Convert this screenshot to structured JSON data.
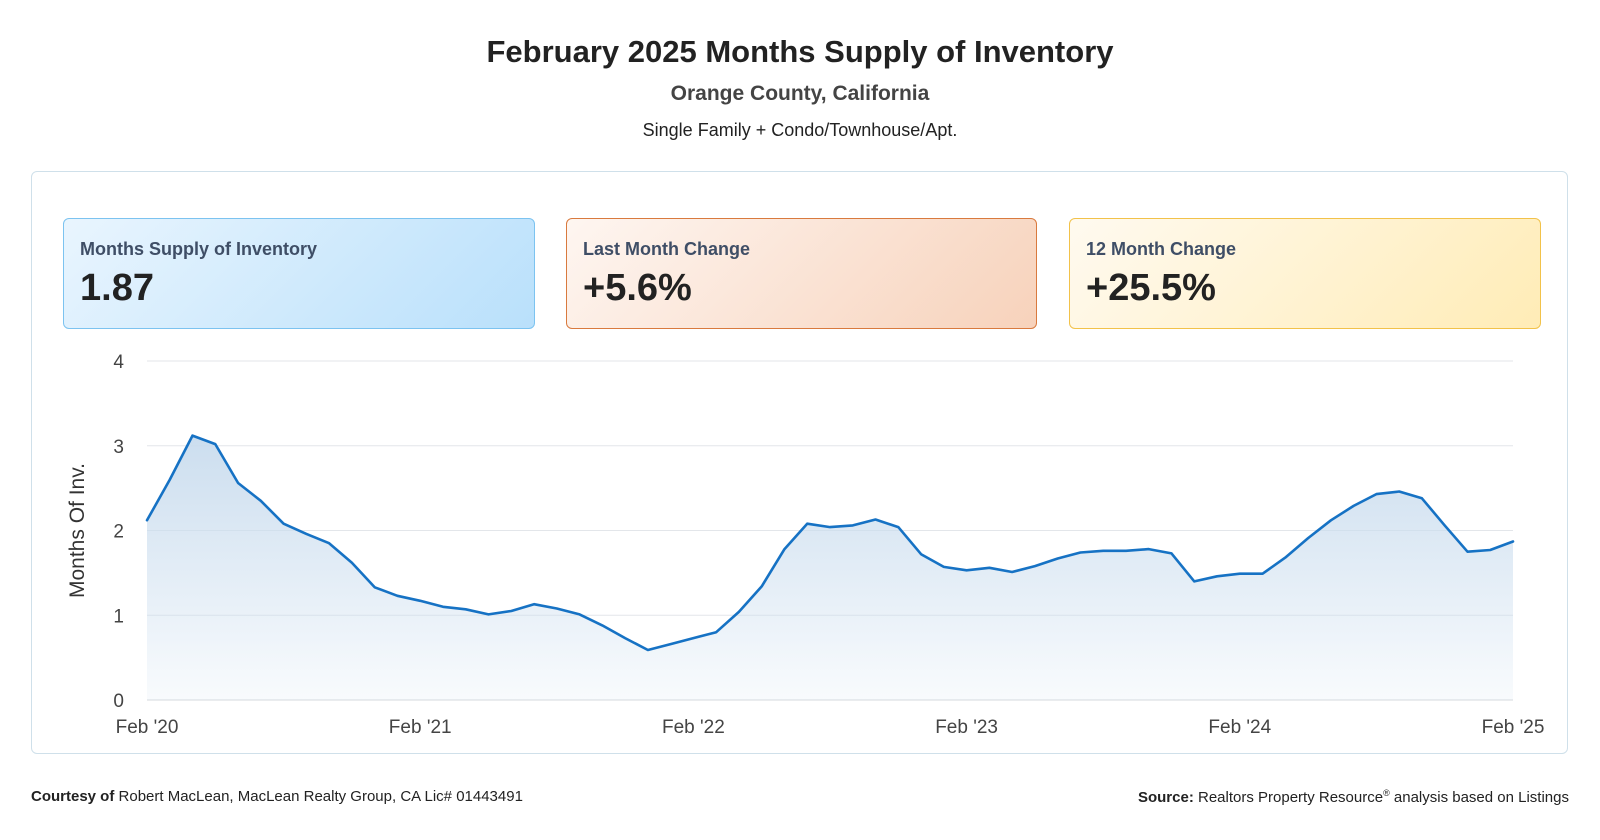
{
  "header": {
    "title": "February 2025 Months Supply of Inventory",
    "subtitle": "Orange County, California",
    "property_types": "Single Family + Condo/Townhouse/Apt."
  },
  "cards": [
    {
      "label": "Months Supply of Inventory",
      "value": "1.87",
      "border": "#7cc3f0"
    },
    {
      "label": "Last Month Change",
      "value": "+5.6%",
      "border": "#d97a3e"
    },
    {
      "label": "12 Month Change",
      "value": "+25.5%",
      "border": "#f2c24a"
    }
  ],
  "footer": {
    "courtesy_label": "Courtesy of",
    "courtesy_text": "Robert MacLean, MacLean Realty Group, CA Lic# 01443491",
    "source_label": "Source:",
    "source_text_a": "Realtors Property Resource",
    "source_sup": "®",
    "source_text_b": " analysis based on Listings"
  },
  "chart_data": {
    "type": "area",
    "ylabel": "Months Of Inv.",
    "ylim": [
      0,
      4
    ],
    "yticks": [
      "0",
      "1",
      "2",
      "3",
      "4"
    ],
    "xtick_labels": [
      "Feb '20",
      "Feb '21",
      "Feb '22",
      "Feb '23",
      "Feb '24",
      "Feb '25"
    ],
    "grid": true,
    "line_color": "#1672c4",
    "fill_color": "#c9dcee",
    "x": [
      "Feb '20",
      "Mar '20",
      "Apr '20",
      "May '20",
      "Jun '20",
      "Jul '20",
      "Aug '20",
      "Sep '20",
      "Oct '20",
      "Nov '20",
      "Dec '20",
      "Jan '21",
      "Feb '21",
      "Mar '21",
      "Apr '21",
      "May '21",
      "Jun '21",
      "Jul '21",
      "Aug '21",
      "Sep '21",
      "Oct '21",
      "Nov '21",
      "Dec '21",
      "Jan '22",
      "Feb '22",
      "Mar '22",
      "Apr '22",
      "May '22",
      "Jun '22",
      "Jul '22",
      "Aug '22",
      "Sep '22",
      "Oct '22",
      "Nov '22",
      "Dec '22",
      "Jan '23",
      "Feb '23",
      "Mar '23",
      "Apr '23",
      "May '23",
      "Jun '23",
      "Jul '23",
      "Aug '23",
      "Sep '23",
      "Oct '23",
      "Nov '23",
      "Dec '23",
      "Jan '24",
      "Feb '24",
      "Mar '24",
      "Apr '24",
      "May '24",
      "Jun '24",
      "Jul '24",
      "Aug '24",
      "Sep '24",
      "Oct '24",
      "Nov '24",
      "Dec '24",
      "Jan '25",
      "Feb '25"
    ],
    "values": [
      2.12,
      2.6,
      3.12,
      3.02,
      2.56,
      2.35,
      2.08,
      1.96,
      1.85,
      1.62,
      1.33,
      1.23,
      1.17,
      1.1,
      1.07,
      1.01,
      1.05,
      1.13,
      1.08,
      1.01,
      0.88,
      0.73,
      0.59,
      0.66,
      0.73,
      0.8,
      1.04,
      1.34,
      1.78,
      2.08,
      2.04,
      2.06,
      2.13,
      2.04,
      1.72,
      1.57,
      1.53,
      1.56,
      1.51,
      1.58,
      1.67,
      1.74,
      1.76,
      1.76,
      1.78,
      1.73,
      1.4,
      1.46,
      1.49,
      1.49,
      1.68,
      1.91,
      2.12,
      2.29,
      2.43,
      2.46,
      2.38,
      2.06,
      1.75,
      1.77,
      1.87
    ]
  }
}
